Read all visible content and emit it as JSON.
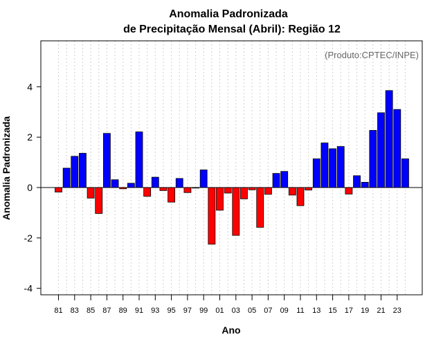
{
  "chart_data": {
    "type": "bar",
    "title": "Anomalia Padronizada",
    "subtitle": "de Precipitação Mensal (Abril): Região 12",
    "xlabel": "Ano",
    "ylabel": "Anomalia Padronizada",
    "credit": "(Produto:CPTEC/INPE)",
    "ylim": [
      -4.3,
      5.8
    ],
    "yticks": [
      -4,
      -2,
      0,
      2,
      4
    ],
    "grid": "vertical-dotted",
    "positive_color": "#0000ff",
    "negative_color": "#ff0000",
    "categories": [
      "1981",
      "1982",
      "1983",
      "1984",
      "1985",
      "1986",
      "1987",
      "1988",
      "1989",
      "1990",
      "1991",
      "1992",
      "1993",
      "1994",
      "1995",
      "1996",
      "1997",
      "1998",
      "1999",
      "2000",
      "2001",
      "2002",
      "2003",
      "2004",
      "2005",
      "2006",
      "2007",
      "2008",
      "2009",
      "2010",
      "2011",
      "2012",
      "2013",
      "2014",
      "2015",
      "2016",
      "2017",
      "2018",
      "2019",
      "2020",
      "2021",
      "2022",
      "2023",
      "2024"
    ],
    "xtick_labels": [
      "81",
      "83",
      "85",
      "87",
      "89",
      "91",
      "93",
      "95",
      "97",
      "99",
      "01",
      "03",
      "05",
      "07",
      "09",
      "11",
      "13",
      "15",
      "17",
      "19",
      "21",
      "23"
    ],
    "values": [
      -0.18,
      0.77,
      1.24,
      1.36,
      -0.42,
      -1.03,
      2.15,
      0.31,
      -0.05,
      0.17,
      2.21,
      -0.35,
      0.41,
      -0.12,
      -0.58,
      0.36,
      -0.2,
      -0.02,
      0.7,
      -2.25,
      -0.9,
      -0.22,
      -1.9,
      -0.45,
      -0.09,
      -1.58,
      -0.27,
      0.56,
      0.64,
      -0.3,
      -0.72,
      -0.1,
      1.14,
      1.77,
      1.54,
      1.63,
      -0.26,
      0.47,
      0.21,
      2.27,
      2.97,
      3.85,
      3.1,
      1.14
    ]
  }
}
